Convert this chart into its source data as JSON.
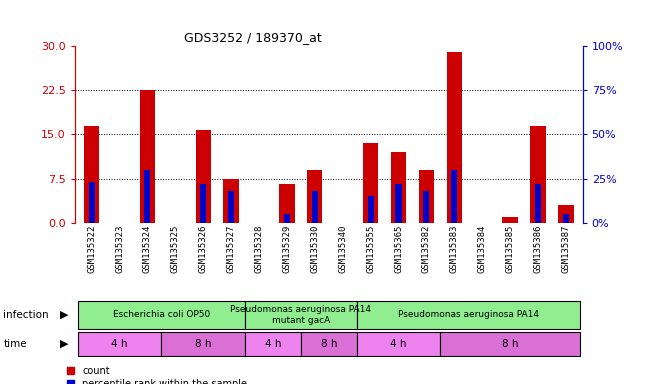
{
  "title": "GDS3252 / 189370_at",
  "samples": [
    "GSM135322",
    "GSM135323",
    "GSM135324",
    "GSM135325",
    "GSM135326",
    "GSM135327",
    "GSM135328",
    "GSM135329",
    "GSM135330",
    "GSM135340",
    "GSM135355",
    "GSM135365",
    "GSM135382",
    "GSM135383",
    "GSM135384",
    "GSM135385",
    "GSM135386",
    "GSM135387"
  ],
  "count_values": [
    16.5,
    0,
    22.5,
    0,
    15.8,
    7.5,
    0,
    6.5,
    9.0,
    0,
    13.5,
    12.0,
    9.0,
    29.0,
    0,
    1.0,
    16.5,
    3.0
  ],
  "percentile_values": [
    23,
    0,
    30,
    0,
    22,
    18,
    0,
    5,
    18,
    0,
    15,
    22,
    18,
    30,
    0,
    0,
    22,
    5
  ],
  "infection_groups": [
    {
      "label": "Escherichia coli OP50",
      "start": 0,
      "end": 6,
      "color": "#90ee90"
    },
    {
      "label": "Pseudomonas aeruginosa PA14\nmutant gacA",
      "start": 6,
      "end": 10,
      "color": "#90ee90"
    },
    {
      "label": "Pseudomonas aeruginosa PA14",
      "start": 10,
      "end": 18,
      "color": "#90ee90"
    }
  ],
  "time_groups": [
    {
      "label": "4 h",
      "start": 0,
      "end": 3,
      "color": "#ee82ee"
    },
    {
      "label": "8 h",
      "start": 3,
      "end": 6,
      "color": "#da70d6"
    },
    {
      "label": "4 h",
      "start": 6,
      "end": 8,
      "color": "#ee82ee"
    },
    {
      "label": "8 h",
      "start": 8,
      "end": 10,
      "color": "#da70d6"
    },
    {
      "label": "4 h",
      "start": 10,
      "end": 13,
      "color": "#ee82ee"
    },
    {
      "label": "8 h",
      "start": 13,
      "end": 18,
      "color": "#da70d6"
    }
  ],
  "ylim_left": [
    0,
    30
  ],
  "ylim_right": [
    0,
    100
  ],
  "yticks_left": [
    0,
    7.5,
    15,
    22.5,
    30
  ],
  "yticks_right": [
    0,
    25,
    50,
    75,
    100
  ],
  "bar_width": 0.55,
  "count_color": "#cc0000",
  "percentile_color": "#0000cc",
  "bg_color": "#ffffff",
  "left_tick_color": "#cc0000",
  "right_tick_color": "#0000cc",
  "row_header_infection": "infection",
  "row_header_time": "time",
  "legend_count": "count",
  "legend_percentile": "percentile rank within the sample",
  "figsize": [
    6.51,
    3.84
  ],
  "dpi": 100
}
